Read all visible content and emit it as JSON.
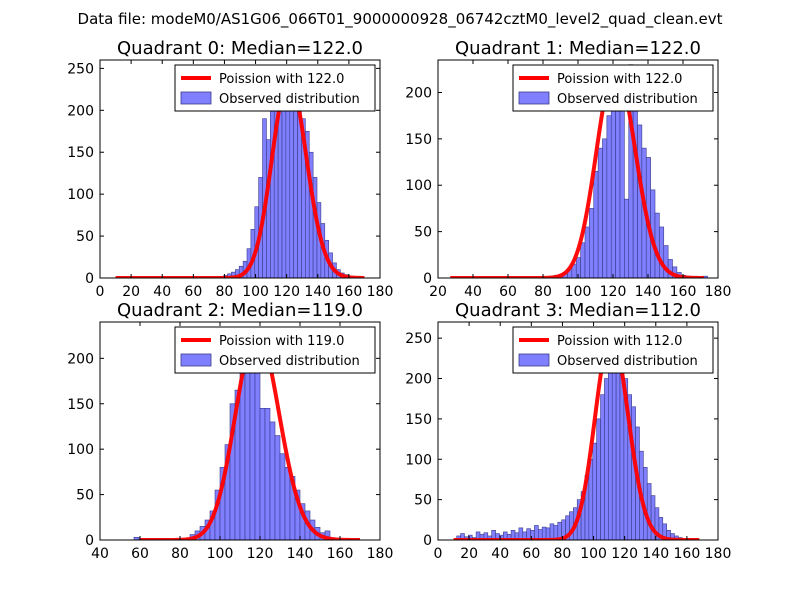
{
  "figure_title": "Data file: modeM0/AS1G06_066T01_9000000928_06742cztM0_level2_quad_clean.evt",
  "colors": {
    "hist_fill": "#8080ff",
    "hist_edge": "#3a3a8a",
    "poisson_line": "#ff0000",
    "poisson_line_peak": "#ff8080",
    "axes": "#000000"
  },
  "chart_data": [
    {
      "type": "bar",
      "title": "Quadrant 0: Median=122.0",
      "median": 122.0,
      "xlim": [
        0,
        180
      ],
      "ylim": [
        0,
        260
      ],
      "xticks": [
        0,
        20,
        40,
        60,
        80,
        100,
        120,
        140,
        160,
        180
      ],
      "yticks": [
        0,
        50,
        100,
        150,
        200,
        250
      ],
      "legend": [
        "Poission with 122.0",
        "Observed distribution"
      ],
      "bin_width": 2.5,
      "bins_x": [
        77,
        79.5,
        82,
        84.5,
        87,
        89.5,
        92,
        94.5,
        97,
        99.5,
        102,
        104.5,
        107,
        109.5,
        112,
        114.5,
        117,
        119.5,
        122,
        124.5,
        127,
        129.5,
        132,
        134.5,
        137,
        139.5,
        142,
        144.5,
        147,
        149.5,
        152,
        154.5,
        157,
        159.5,
        162
      ],
      "counts": [
        2,
        3,
        5,
        7,
        10,
        14,
        20,
        35,
        58,
        85,
        120,
        190,
        165,
        200,
        210,
        230,
        245,
        240,
        250,
        230,
        215,
        190,
        175,
        150,
        120,
        90,
        65,
        45,
        30,
        18,
        10,
        6,
        4,
        2,
        1
      ],
      "curve": {
        "lambda": 122.0,
        "scale": 237,
        "x": [
          10,
          170
        ]
      }
    },
    {
      "type": "bar",
      "title": "Quadrant 1: Median=122.0",
      "median": 122.0,
      "xlim": [
        20,
        180
      ],
      "ylim": [
        0,
        235
      ],
      "xticks": [
        20,
        40,
        60,
        80,
        100,
        120,
        140,
        160,
        180
      ],
      "yticks": [
        0,
        50,
        100,
        150,
        200
      ],
      "legend": [
        "Poission with 122.0",
        "Observed distribution"
      ],
      "bin_width": 2.5,
      "bins_x": [
        84,
        86.5,
        89,
        91.5,
        94,
        96.5,
        99,
        101.5,
        104,
        106.5,
        109,
        111.5,
        114,
        116.5,
        119,
        121.5,
        124,
        126.5,
        129,
        131.5,
        134,
        136.5,
        139,
        141.5,
        144,
        146.5,
        149,
        151.5,
        154,
        156.5,
        159,
        161.5,
        164,
        166.5,
        169,
        171.5
      ],
      "counts": [
        2,
        3,
        4,
        6,
        10,
        15,
        22,
        38,
        55,
        75,
        115,
        140,
        150,
        175,
        190,
        210,
        220,
        85,
        230,
        195,
        165,
        140,
        130,
        95,
        70,
        55,
        35,
        20,
        12,
        6,
        3,
        2,
        1,
        0,
        1,
        2
      ],
      "curve": {
        "lambda": 122.0,
        "scale": 227,
        "x": [
          27,
          172
        ]
      }
    },
    {
      "type": "bar",
      "title": "Quadrant 2: Median=119.0",
      "median": 119.0,
      "xlim": [
        40,
        180
      ],
      "ylim": [
        0,
        240
      ],
      "xticks": [
        40,
        60,
        80,
        100,
        120,
        140,
        160,
        180
      ],
      "yticks": [
        0,
        50,
        100,
        150,
        200
      ],
      "legend": [
        "Poission with 119.0",
        "Observed distribution"
      ],
      "bin_width": 2.5,
      "bins_x": [
        57,
        85,
        87.5,
        90,
        92.5,
        95,
        97.5,
        100,
        102.5,
        105,
        107.5,
        110,
        112.5,
        115,
        117.5,
        120,
        122.5,
        125,
        127.5,
        130,
        132.5,
        135,
        137.5,
        140,
        142.5,
        145,
        147.5,
        150,
        152.5,
        155
      ],
      "counts": [
        3,
        6,
        10,
        15,
        22,
        32,
        55,
        80,
        105,
        150,
        165,
        185,
        195,
        205,
        210,
        145,
        145,
        130,
        115,
        95,
        80,
        70,
        55,
        40,
        32,
        22,
        14,
        8,
        10,
        2
      ],
      "curve": {
        "lambda": 119.0,
        "scale": 229,
        "x": [
          60,
          170
        ]
      }
    },
    {
      "type": "bar",
      "title": "Quadrant 3: Median=112.0",
      "median": 112.0,
      "xlim": [
        0,
        180
      ],
      "ylim": [
        0,
        270
      ],
      "xticks": [
        0,
        20,
        40,
        60,
        80,
        100,
        120,
        140,
        160,
        180
      ],
      "yticks": [
        0,
        50,
        100,
        150,
        200,
        250
      ],
      "legend": [
        "Poission with 112.0",
        "Observed distribution"
      ],
      "bin_width": 2.5,
      "bins_x": [
        12,
        14.5,
        17,
        19.5,
        22,
        24.5,
        27,
        29.5,
        32,
        34.5,
        37,
        39.5,
        42,
        44.5,
        47,
        49.5,
        52,
        54.5,
        57,
        59.5,
        62,
        64.5,
        67,
        69.5,
        72,
        74.5,
        77,
        79.5,
        82,
        84.5,
        87,
        89.5,
        92,
        94.5,
        97,
        99.5,
        102,
        104.5,
        107,
        109.5,
        112,
        114.5,
        117,
        119.5,
        122,
        124.5,
        127,
        129.5,
        132,
        134.5,
        137,
        139.5,
        142,
        144.5,
        147,
        149.5,
        152,
        154.5
      ],
      "counts": [
        5,
        8,
        4,
        6,
        3,
        10,
        7,
        9,
        5,
        12,
        8,
        6,
        10,
        7,
        12,
        9,
        15,
        10,
        14,
        12,
        18,
        13,
        16,
        15,
        20,
        18,
        22,
        25,
        30,
        35,
        40,
        50,
        60,
        80,
        100,
        120,
        150,
        180,
        200,
        225,
        250,
        235,
        220,
        200,
        180,
        165,
        140,
        110,
        90,
        70,
        55,
        40,
        28,
        20,
        12,
        8,
        5,
        3
      ],
      "curve": {
        "lambda": 112.0,
        "scale": 254,
        "x": [
          10,
          168
        ]
      }
    }
  ]
}
